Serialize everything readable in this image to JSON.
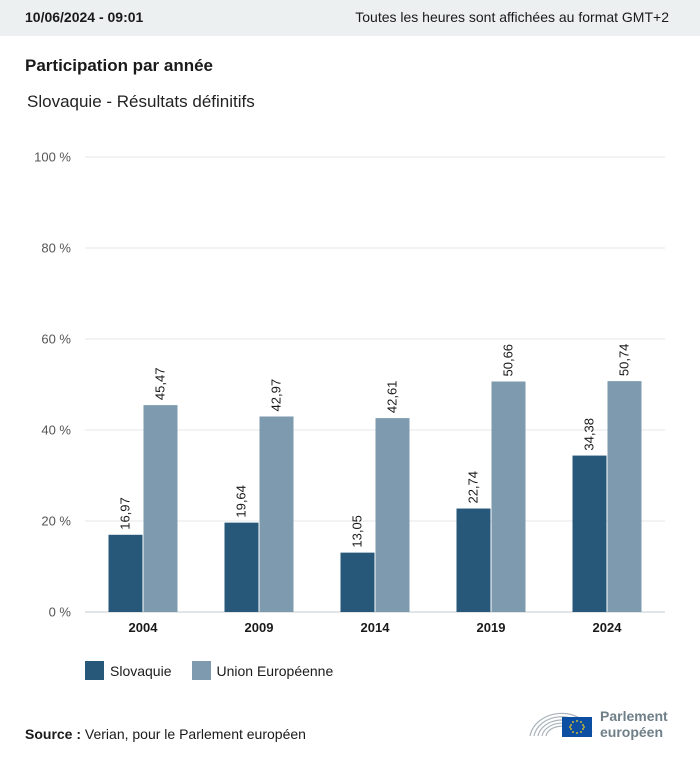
{
  "header": {
    "datetime": "10/06/2024 - 09:01",
    "timezone_note": "Toutes les heures sont affichées au format GMT+2"
  },
  "title": "Participation par année",
  "subtitle": "Slovaquie - Résultats définitifs",
  "chart_data": {
    "type": "bar",
    "categories": [
      "2004",
      "2009",
      "2014",
      "2019",
      "2024"
    ],
    "series": [
      {
        "name": "Slovaquie",
        "values": [
          16.97,
          19.64,
          13.05,
          22.74,
          34.38
        ],
        "labels": [
          "16,97",
          "19,64",
          "13,05",
          "22,74",
          "34,38"
        ],
        "color": "#27587a"
      },
      {
        "name": "Union Européenne",
        "values": [
          45.47,
          42.97,
          42.61,
          50.66,
          50.74
        ],
        "labels": [
          "45,47",
          "42,97",
          "42,61",
          "50,66",
          "50,74"
        ],
        "color": "#7d9aae"
      }
    ],
    "yticks": [
      "0 %",
      "20 %",
      "40 %",
      "60 %",
      "80 %",
      "100 %"
    ],
    "ylim": [
      0,
      100
    ],
    "grid": true,
    "legend": "bottom-left"
  },
  "source": {
    "label": "Source :",
    "text": "Verian, pour le Parlement européen"
  },
  "logo": {
    "line1": "Parlement",
    "line2": "européen"
  },
  "colors": {
    "topbar_bg": "#edf0f1",
    "grid": "#e4e7e9",
    "axis": "#c4cbd0",
    "logo_text": "#6f7f88",
    "eu_flag": "#0b4ea2",
    "eu_stars": "#ffd617"
  }
}
